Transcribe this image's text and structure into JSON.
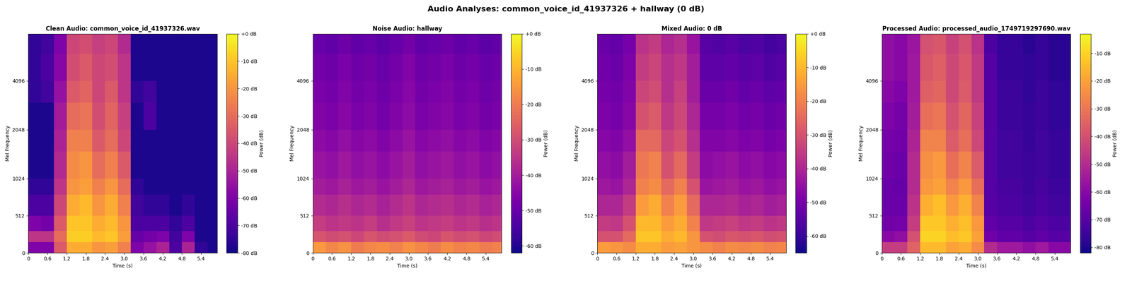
{
  "title": "Audio Analyses: common_voice_id_41937326 + hallway (0 dB)",
  "chart_data": [
    {
      "type": "heatmap",
      "title": "Clean Audio: common_voice_id_41937326.wav",
      "x_label": "Time (s)",
      "y_label": "Mel Frequency",
      "color": "plasma",
      "xlim": [
        0,
        5.9
      ],
      "xticks": [
        0,
        0.6,
        1.2,
        1.8,
        2.4,
        {
          "value": 3,
          "label": "3.0"
        },
        3.6,
        4.2,
        4.8,
        5.4
      ],
      "ylim": [
        0,
        8000
      ],
      "yticks": [
        0,
        512,
        1024,
        2048,
        4096
      ],
      "x_edges": [
        0,
        0.4,
        0.8,
        1.2,
        1.6,
        2.0,
        2.4,
        2.8,
        3.2,
        3.6,
        4.0,
        4.4,
        4.8,
        5.2,
        5.6,
        5.9
      ],
      "y_edges": [
        0,
        150,
        300,
        512,
        800,
        1024,
        1500,
        2048,
        3000,
        4096,
        6000,
        8000
      ],
      "cells": [
        [
          -60,
          -60,
          -35,
          -15,
          -15,
          -20,
          -18,
          -25,
          -60,
          -55,
          -50,
          -70,
          -50,
          -75,
          -78
        ],
        [
          -45,
          -45,
          -30,
          -8,
          -8,
          -12,
          -10,
          -18,
          -65,
          -62,
          -60,
          -72,
          -60,
          -78,
          -78
        ],
        [
          -60,
          -62,
          -35,
          -10,
          -10,
          -15,
          -12,
          -20,
          -70,
          -70,
          -70,
          -75,
          -70,
          -78,
          -78
        ],
        [
          -70,
          -70,
          -40,
          -15,
          -12,
          -20,
          -15,
          -25,
          -72,
          -75,
          -75,
          -78,
          -75,
          -78,
          -78
        ],
        [
          -75,
          -75,
          -45,
          -20,
          -18,
          -25,
          -20,
          -30,
          -75,
          -78,
          -78,
          -78,
          -78,
          -78,
          -78
        ],
        [
          -78,
          -78,
          -48,
          -22,
          -20,
          -30,
          -25,
          -35,
          -78,
          -78,
          -78,
          -78,
          -78,
          -78,
          -78
        ],
        [
          -78,
          -78,
          -50,
          -25,
          -25,
          -35,
          -30,
          -40,
          -78,
          -78,
          -78,
          -78,
          -78,
          -78,
          -78
        ],
        [
          -78,
          -78,
          -52,
          -30,
          -28,
          -38,
          -32,
          -42,
          -78,
          -70,
          -78,
          -78,
          -78,
          -78,
          -78
        ],
        [
          -75,
          -72,
          -55,
          -35,
          -32,
          -40,
          -35,
          -45,
          -75,
          -72,
          -78,
          -78,
          -78,
          -78,
          -78
        ],
        [
          -75,
          -70,
          -58,
          -38,
          -35,
          -40,
          -38,
          -45,
          -78,
          -78,
          -78,
          -78,
          -78,
          -78,
          -78
        ],
        [
          -75,
          -72,
          -60,
          -40,
          -38,
          -42,
          -40,
          -48,
          -78,
          -78,
          -78,
          -78,
          -78,
          -78,
          -78
        ]
      ],
      "colorbar": {
        "label": "Power (dB)",
        "range": [
          -80,
          0
        ],
        "ticks": [
          {
            "value": 0,
            "label": "+0 dB"
          },
          {
            "value": -10,
            "label": "-10 dB"
          },
          {
            "value": -20,
            "label": "-20 dB"
          },
          {
            "value": -30,
            "label": "-30 dB"
          },
          {
            "value": -40,
            "label": "-40 dB"
          },
          {
            "value": -50,
            "label": "-50 dB"
          },
          {
            "value": -60,
            "label": "-60 dB"
          },
          {
            "value": -70,
            "label": "-70 dB"
          },
          {
            "value": -80,
            "label": "-80 dB"
          }
        ]
      }
    },
    {
      "type": "heatmap",
      "title": "Noise Audio: hallway",
      "x_label": "Time (s)",
      "y_label": "Mel Frequency",
      "color": "plasma",
      "xlim": [
        0,
        5.9
      ],
      "xticks": [
        0,
        0.6,
        1.2,
        1.8,
        2.4,
        {
          "value": 3,
          "label": "3.0"
        },
        3.6,
        4.2,
        4.8,
        5.4
      ],
      "ylim": [
        0,
        8000
      ],
      "yticks": [
        0,
        512,
        1024,
        2048,
        4096
      ],
      "x_edges": [
        0,
        0.4,
        0.8,
        1.2,
        1.6,
        2.0,
        2.4,
        2.8,
        3.2,
        3.6,
        4.0,
        4.4,
        4.8,
        5.2,
        5.6,
        5.9
      ],
      "y_edges": [
        0,
        150,
        300,
        512,
        800,
        1024,
        1500,
        2048,
        3000,
        4096,
        6000,
        8000
      ],
      "cells": [
        [
          -15,
          -18,
          -16,
          -20,
          -18,
          -17,
          -19,
          -16,
          -18,
          -20,
          -17,
          -19,
          -18,
          -20,
          -19
        ],
        [
          -28,
          -30,
          -29,
          -31,
          -28,
          -30,
          -29,
          -27,
          -30,
          -31,
          -28,
          -30,
          -29,
          -31,
          -30
        ],
        [
          -33,
          -35,
          -34,
          -35,
          -33,
          -36,
          -34,
          -32,
          -35,
          -34,
          -33,
          -35,
          -34,
          -36,
          -35
        ],
        [
          -37,
          -38,
          -36,
          -38,
          -37,
          -39,
          -37,
          -35,
          -38,
          -37,
          -36,
          -38,
          -37,
          -39,
          -38
        ],
        [
          -40,
          -41,
          -39,
          -41,
          -40,
          -42,
          -40,
          -38,
          -41,
          -40,
          -39,
          -41,
          -40,
          -42,
          -41
        ],
        [
          -42,
          -43,
          -41,
          -43,
          -42,
          -44,
          -42,
          -40,
          -43,
          -42,
          -41,
          -43,
          -42,
          -44,
          -43
        ],
        [
          -44,
          -45,
          -43,
          -45,
          -44,
          -46,
          -44,
          -42,
          -45,
          -44,
          -43,
          -45,
          -44,
          -46,
          -45
        ],
        [
          -46,
          -47,
          -45,
          -47,
          -46,
          -48,
          -46,
          -44,
          -47,
          -46,
          -45,
          -47,
          -46,
          -48,
          -47
        ],
        [
          -47,
          -48,
          -46,
          -48,
          -47,
          -49,
          -47,
          -45,
          -48,
          -47,
          -46,
          -48,
          -47,
          -49,
          -48
        ],
        [
          -48,
          -49,
          -47,
          -49,
          -48,
          -50,
          -48,
          -46,
          -49,
          -48,
          -47,
          -49,
          -48,
          -50,
          -49
        ],
        [
          -50,
          -51,
          -49,
          -51,
          -50,
          -52,
          -50,
          -48,
          -51,
          -50,
          -49,
          -51,
          -50,
          -52,
          -51
        ]
      ],
      "colorbar": {
        "label": "Power (dB)",
        "range": [
          -62,
          0
        ],
        "ticks": [
          {
            "value": 0,
            "label": "+0 dB"
          },
          {
            "value": -10,
            "label": "-10 dB"
          },
          {
            "value": -20,
            "label": "-20 dB"
          },
          {
            "value": -30,
            "label": "-30 dB"
          },
          {
            "value": -40,
            "label": "-40 dB"
          },
          {
            "value": -50,
            "label": "-50 dB"
          },
          {
            "value": -60,
            "label": "-60 dB"
          }
        ]
      }
    },
    {
      "type": "heatmap",
      "title": "Mixed Audio: 0 dB",
      "x_label": "Time (s)",
      "y_label": "Mel Frequency",
      "color": "plasma",
      "xlim": [
        0,
        5.9
      ],
      "xticks": [
        0,
        0.6,
        1.2,
        1.8,
        2.4,
        {
          "value": 3,
          "label": "3.0"
        },
        3.6,
        4.2,
        4.8,
        5.4
      ],
      "ylim": [
        0,
        8000
      ],
      "yticks": [
        0,
        512,
        1024,
        2048,
        4096
      ],
      "x_edges": [
        0,
        0.4,
        0.8,
        1.2,
        1.6,
        2.0,
        2.4,
        2.8,
        3.2,
        3.6,
        4.0,
        4.4,
        4.8,
        5.2,
        5.6,
        5.9
      ],
      "y_edges": [
        0,
        150,
        300,
        512,
        800,
        1024,
        1500,
        2048,
        3000,
        4096,
        6000,
        8000
      ],
      "cells": [
        [
          -15,
          -16,
          -18,
          -12,
          -12,
          -15,
          -14,
          -16,
          -18,
          -20,
          -18,
          -19,
          -18,
          -20,
          -19
        ],
        [
          -30,
          -30,
          -25,
          -8,
          -8,
          -12,
          -10,
          -16,
          -30,
          -31,
          -29,
          -30,
          -29,
          -31,
          -30
        ],
        [
          -35,
          -36,
          -30,
          -10,
          -10,
          -15,
          -12,
          -20,
          -36,
          -35,
          -34,
          -36,
          -35,
          -37,
          -36
        ],
        [
          -40,
          -40,
          -35,
          -15,
          -12,
          -20,
          -15,
          -25,
          -40,
          -40,
          -39,
          -41,
          -40,
          -42,
          -41
        ],
        [
          -43,
          -44,
          -40,
          -20,
          -18,
          -25,
          -20,
          -30,
          -44,
          -43,
          -42,
          -44,
          -43,
          -45,
          -44
        ],
        [
          -45,
          -46,
          -42,
          -22,
          -20,
          -30,
          -25,
          -35,
          -46,
          -45,
          -44,
          -46,
          -45,
          -47,
          -46
        ],
        [
          -47,
          -48,
          -45,
          -25,
          -25,
          -33,
          -30,
          -38,
          -48,
          -48,
          -47,
          -49,
          -48,
          -50,
          -49
        ],
        [
          -49,
          -50,
          -47,
          -30,
          -28,
          -36,
          -32,
          -40,
          -50,
          -50,
          -49,
          -51,
          -50,
          -52,
          -51
        ],
        [
          -50,
          -51,
          -48,
          -33,
          -31,
          -38,
          -34,
          -42,
          -52,
          -52,
          -51,
          -53,
          -52,
          -54,
          -53
        ],
        [
          -51,
          -52,
          -49,
          -35,
          -33,
          -38,
          -36,
          -42,
          -54,
          -54,
          -53,
          -55,
          -54,
          -56,
          -55
        ],
        [
          -52,
          -53,
          -50,
          -37,
          -35,
          -40,
          -38,
          -44,
          -55,
          -56,
          -55,
          -57,
          -56,
          -58,
          -57
        ]
      ],
      "colorbar": {
        "label": "Power (dB)",
        "range": [
          -65,
          0
        ],
        "ticks": [
          {
            "value": 0,
            "label": "+0 dB"
          },
          {
            "value": -10,
            "label": "-10 dB"
          },
          {
            "value": -20,
            "label": "-20 dB"
          },
          {
            "value": -30,
            "label": "-30 dB"
          },
          {
            "value": -40,
            "label": "-40 dB"
          },
          {
            "value": -50,
            "label": "-50 dB"
          },
          {
            "value": -60,
            "label": "-60 dB"
          }
        ]
      }
    },
    {
      "type": "heatmap",
      "title": "Processed Audio: processed_audio_1749719297690.wav",
      "x_label": "Time (s)",
      "y_label": "Mel Frequency",
      "color": "plasma",
      "xlim": [
        0,
        5.9
      ],
      "xticks": [
        0,
        0.6,
        1.2,
        1.8,
        2.4,
        {
          "value": 3,
          "label": "3.0"
        },
        3.6,
        4.2,
        4.8,
        5.4
      ],
      "ylim": [
        0,
        8000
      ],
      "yticks": [
        0,
        512,
        1024,
        2048,
        4096
      ],
      "x_edges": [
        0,
        0.4,
        0.8,
        1.2,
        1.6,
        2.0,
        2.4,
        2.8,
        3.2,
        3.6,
        4.0,
        4.4,
        4.8,
        5.2,
        5.6,
        5.9
      ],
      "y_edges": [
        0,
        150,
        300,
        512,
        800,
        1024,
        1500,
        2048,
        3000,
        4096,
        6000,
        8000
      ],
      "cells": [
        [
          -45,
          -45,
          -35,
          -15,
          -15,
          -20,
          -18,
          -25,
          -50,
          -55,
          -55,
          -58,
          -55,
          -60,
          -60
        ],
        [
          -60,
          -58,
          -40,
          -10,
          -10,
          -14,
          -12,
          -20,
          -65,
          -68,
          -68,
          -70,
          -68,
          -70,
          -70
        ],
        [
          -65,
          -64,
          -45,
          -12,
          -12,
          -17,
          -14,
          -22,
          -68,
          -70,
          -70,
          -72,
          -70,
          -72,
          -72
        ],
        [
          -66,
          -66,
          -48,
          -17,
          -14,
          -22,
          -17,
          -27,
          -70,
          -72,
          -72,
          -74,
          -72,
          -74,
          -74
        ],
        [
          -66,
          -67,
          -50,
          -22,
          -20,
          -27,
          -22,
          -32,
          -70,
          -73,
          -73,
          -75,
          -73,
          -75,
          -75
        ],
        [
          -65,
          -66,
          -50,
          -24,
          -22,
          -32,
          -27,
          -37,
          -70,
          -74,
          -74,
          -75,
          -74,
          -76,
          -76
        ],
        [
          -64,
          -65,
          -52,
          -27,
          -27,
          -37,
          -32,
          -42,
          -70,
          -74,
          -74,
          -76,
          -74,
          -76,
          -76
        ],
        [
          -62,
          -64,
          -54,
          -32,
          -30,
          -40,
          -34,
          -44,
          -70,
          -75,
          -75,
          -76,
          -75,
          -77,
          -77
        ],
        [
          -60,
          -62,
          -55,
          -36,
          -34,
          -42,
          -37,
          -46,
          -70,
          -75,
          -75,
          -77,
          -75,
          -77,
          -77
        ],
        [
          -58,
          -60,
          -55,
          -38,
          -36,
          -42,
          -38,
          -46,
          -70,
          -76,
          -76,
          -77,
          -76,
          -78,
          -78
        ],
        [
          -58,
          -60,
          -56,
          -40,
          -38,
          -44,
          -40,
          -48,
          -72,
          -76,
          -76,
          -78,
          -76,
          -78,
          -78
        ]
      ],
      "colorbar": {
        "label": "Power (dB)",
        "range": [
          -82,
          -3
        ],
        "ticks": [
          {
            "value": -10,
            "label": "-10 dB"
          },
          {
            "value": -20,
            "label": "-20 dB"
          },
          {
            "value": -30,
            "label": "-30 dB"
          },
          {
            "value": -40,
            "label": "-40 dB"
          },
          {
            "value": -50,
            "label": "-50 dB"
          },
          {
            "value": -60,
            "label": "-60 dB"
          },
          {
            "value": -70,
            "label": "-70 dB"
          },
          {
            "value": -80,
            "label": "-80 dB"
          }
        ]
      }
    }
  ]
}
